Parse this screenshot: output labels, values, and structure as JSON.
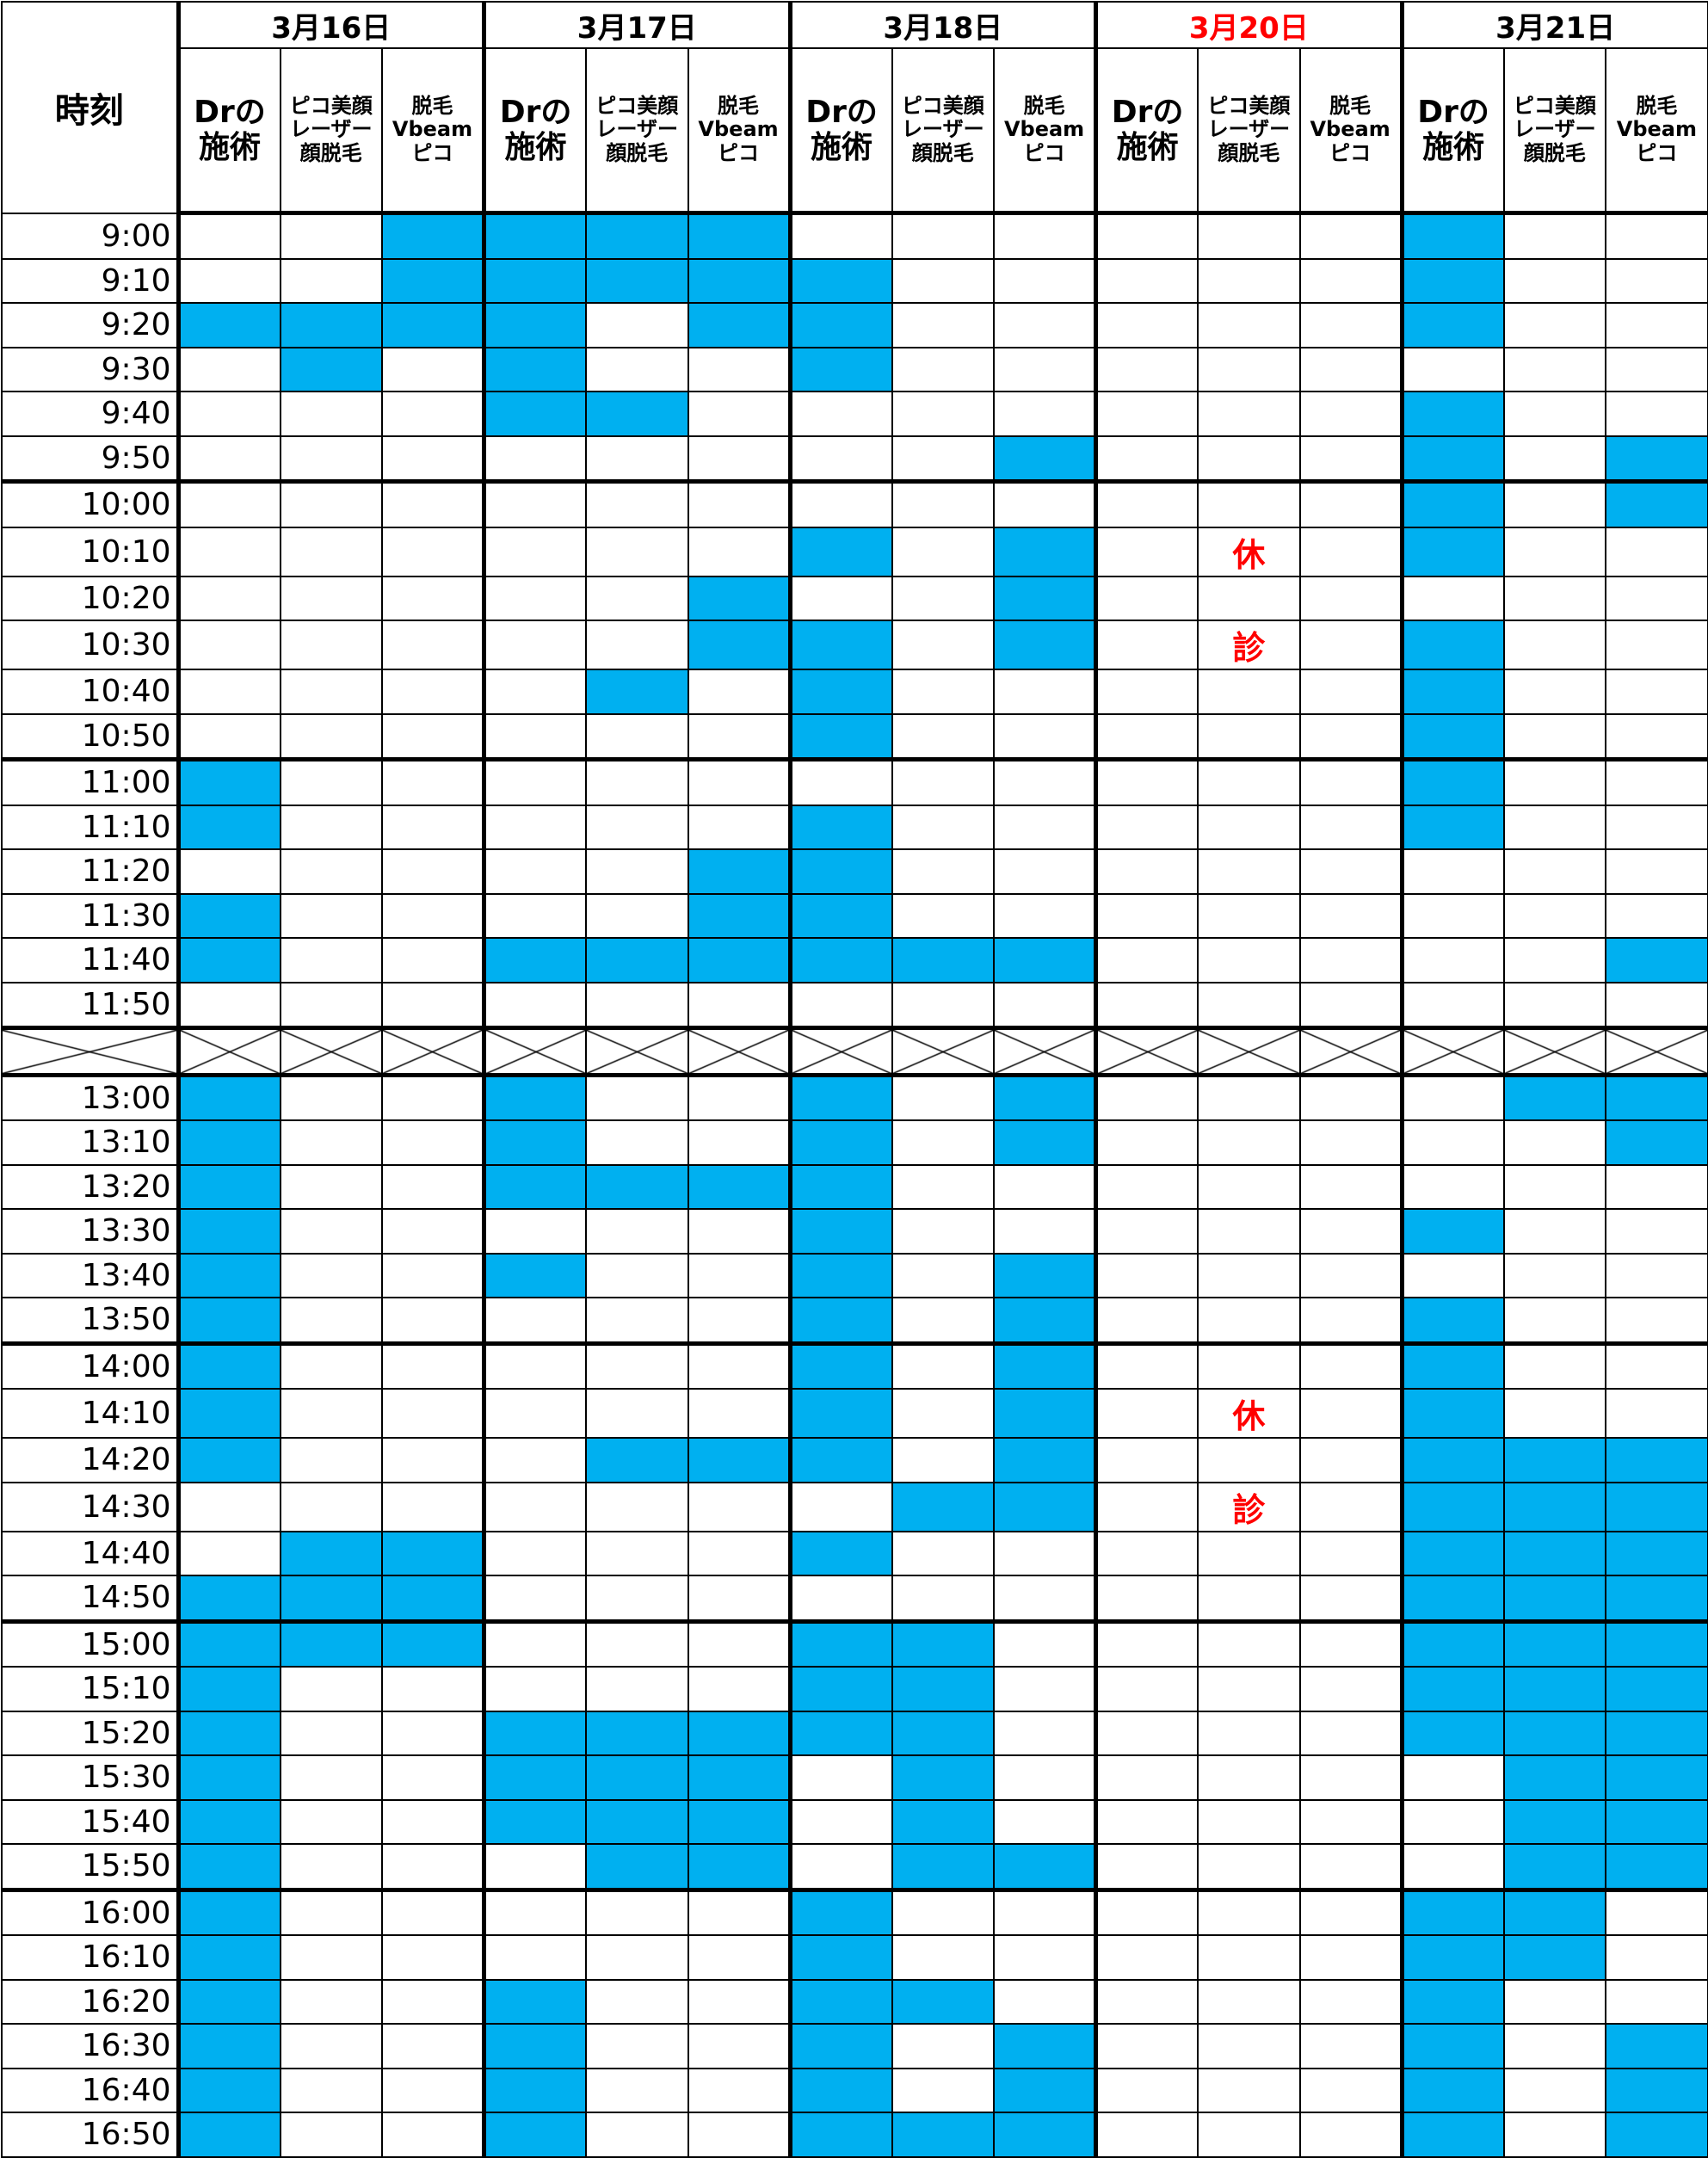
{
  "header": {
    "time_label": "時刻",
    "days": [
      {
        "label": "3月16日",
        "holiday": false
      },
      {
        "label": "3月17日",
        "holiday": false
      },
      {
        "label": "3月18日",
        "holiday": false
      },
      {
        "label": "3月20日",
        "holiday": true
      },
      {
        "label": "3月21日",
        "holiday": false
      }
    ],
    "sub_columns": [
      "Drの施術",
      "ピコ美顔レーザー顔脱毛",
      "脱毛Vbeamピコ"
    ]
  },
  "colors": {
    "booked": "#00b0f0",
    "holiday_text": "#ff0000"
  },
  "rows": [
    {
      "time": "9:00",
      "slots": "001111000000100"
    },
    {
      "time": "9:10",
      "slots": "001111100000100"
    },
    {
      "time": "9:20",
      "slots": "111101100000100"
    },
    {
      "time": "9:30",
      "slots": "010100100000000"
    },
    {
      "time": "9:40",
      "slots": "000110000000100"
    },
    {
      "time": "9:50",
      "slots": "000000001000101"
    },
    {
      "time": "10:00",
      "slots": "000000000000101"
    },
    {
      "time": "10:10",
      "slots": "000000101000100",
      "note": "休"
    },
    {
      "time": "10:20",
      "slots": "000001001000000"
    },
    {
      "time": "10:30",
      "slots": "000001101000100",
      "note": "診"
    },
    {
      "time": "10:40",
      "slots": "000010100000100"
    },
    {
      "time": "10:50",
      "slots": "000000100000100"
    },
    {
      "time": "11:00",
      "slots": "100000000000100"
    },
    {
      "time": "11:10",
      "slots": "100000100000100"
    },
    {
      "time": "11:20",
      "slots": "000001100000000"
    },
    {
      "time": "11:30",
      "slots": "100001100000000"
    },
    {
      "time": "11:40",
      "slots": "100111111000001"
    },
    {
      "time": "11:50",
      "slots": "000000000000000"
    },
    {
      "break": true
    },
    {
      "time": "13:00",
      "slots": "100100101000011"
    },
    {
      "time": "13:10",
      "slots": "100100101000001"
    },
    {
      "time": "13:20",
      "slots": "100111100000000"
    },
    {
      "time": "13:30",
      "slots": "100000100000100"
    },
    {
      "time": "13:40",
      "slots": "100100101000000"
    },
    {
      "time": "13:50",
      "slots": "100000101000100"
    },
    {
      "time": "14:00",
      "slots": "100000101000100"
    },
    {
      "time": "14:10",
      "slots": "100000101000100",
      "note": "休"
    },
    {
      "time": "14:20",
      "slots": "100011101000111"
    },
    {
      "time": "14:30",
      "slots": "000000011000111",
      "note": "診"
    },
    {
      "time": "14:40",
      "slots": "011000100000111"
    },
    {
      "time": "14:50",
      "slots": "111000000000111"
    },
    {
      "time": "15:00",
      "slots": "111000110000111"
    },
    {
      "time": "15:10",
      "slots": "100000110000111"
    },
    {
      "time": "15:20",
      "slots": "100111110000111"
    },
    {
      "time": "15:30",
      "slots": "100111010000011"
    },
    {
      "time": "15:40",
      "slots": "100111010000011"
    },
    {
      "time": "15:50",
      "slots": "100011011000011"
    },
    {
      "time": "16:00",
      "slots": "100000100000110"
    },
    {
      "time": "16:10",
      "slots": "100000100000110"
    },
    {
      "time": "16:20",
      "slots": "100100110000100"
    },
    {
      "time": "16:30",
      "slots": "100100101000101"
    },
    {
      "time": "16:40",
      "slots": "100100101000101"
    },
    {
      "time": "16:50",
      "slots": "100100111000101"
    }
  ]
}
